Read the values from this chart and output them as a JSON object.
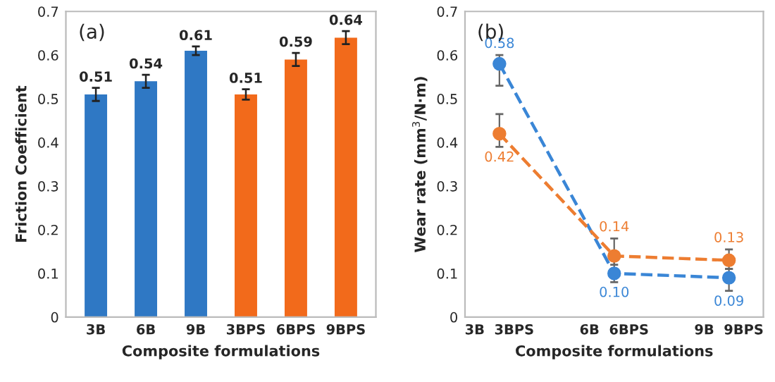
{
  "chart_data": [
    {
      "type": "bar",
      "annotations": [
        "(a)"
      ],
      "xlabel": "Composite formulations",
      "ylabel": "Friction Coefficient",
      "categories": [
        "3B",
        "6B",
        "9B",
        "3BPS",
        "6BPS",
        "9BPS"
      ],
      "values": [
        0.51,
        0.54,
        0.61,
        0.51,
        0.59,
        0.64
      ],
      "colors": [
        "#2f78c4",
        "#2f78c4",
        "#2f78c4",
        "#f26a1b",
        "#f26a1b",
        "#f26a1b"
      ],
      "errors": [
        0.015,
        0.015,
        0.01,
        0.012,
        0.015,
        0.015
      ],
      "ylim": [
        0,
        0.7
      ],
      "yticks": [
        0,
        0.1,
        0.2,
        0.3,
        0.4,
        0.5,
        0.6,
        0.7
      ],
      "data_labels": true,
      "grid": false
    },
    {
      "type": "line",
      "annotations": [
        "(b)"
      ],
      "xlabel": "Composite formulations",
      "ylabel": "Wear rate (mm$^{3}$/N·m)",
      "categories": [
        "3B  3BPS",
        "6B  6BPS",
        "9B  9BPS"
      ],
      "series": [
        {
          "color": "#3a86d6",
          "values": [
            0.58,
            0.1,
            0.09
          ],
          "value_labels": [
            "0.58",
            "0.10",
            "0.09"
          ],
          "errors": [
            [
              0.53,
              0.6
            ],
            [
              0.08,
              0.13
            ],
            [
              0.06,
              0.11
            ]
          ]
        },
        {
          "color": "#ed7d31",
          "values": [
            0.42,
            0.14,
            0.13
          ],
          "value_labels": [
            "0.42",
            "0.14",
            "0.13"
          ],
          "errors": [
            [
              0.39,
              0.465
            ],
            [
              0.12,
              0.18
            ],
            [
              0.11,
              0.155
            ]
          ]
        }
      ],
      "ylim": [
        0,
        0.7
      ],
      "yticks": [
        0,
        0.1,
        0.2,
        0.3,
        0.4,
        0.5,
        0.6,
        0.7
      ],
      "grid": false,
      "marker": "circle",
      "line_style": "dashed",
      "legend": false
    }
  ]
}
